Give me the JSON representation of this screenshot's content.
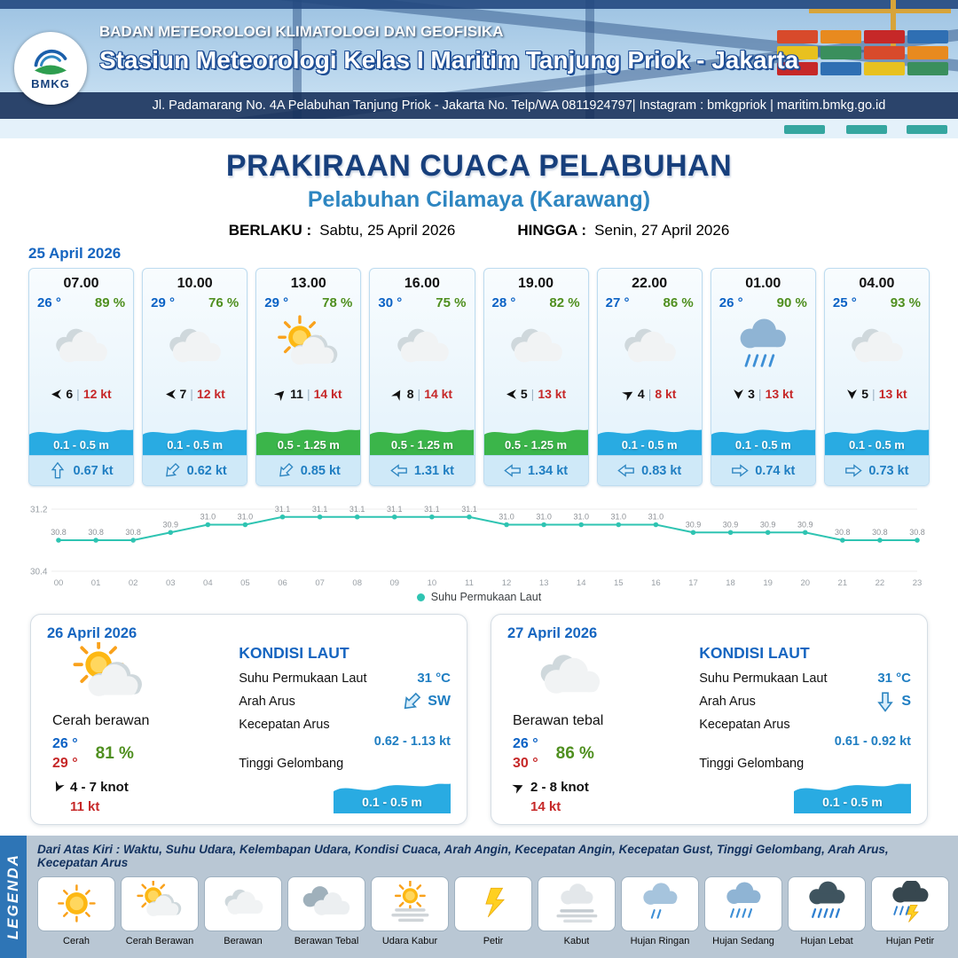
{
  "header": {
    "logo": "BMKG",
    "org": "BADAN METEOROLOGI KLIMATOLOGI DAN GEOFISIKA",
    "station": "Stasiun Meteorologi Kelas I Maritim Tanjung Priok - Jakarta",
    "address": "Jl. Padamarang No. 4A Pelabuhan Tanjung Priok - Jakarta No. Telp/WA 0811924797| Instagram : bmkgpriok | maritim.bmkg.go.id"
  },
  "title": {
    "main": "PRAKIRAAN CUACA PELABUHAN",
    "sub": "Pelabuhan Cilamaya (Karawang)",
    "berlaku_label": "BERLAKU :",
    "berlaku_value": "Sabtu, 25 April 2026",
    "hingga_label": "HINGGA :",
    "hingga_value": "Senin, 27 April 2026"
  },
  "forecast": {
    "date": "25 April 2026",
    "sep": "|",
    "cards": [
      {
        "time": "07.00",
        "temp": "26 °",
        "rh": "89 %",
        "icon": "berawan",
        "wind_rot": 180,
        "wind": "6",
        "gust": "12 kt",
        "wave": "0.1 - 0.5 m",
        "wave_color": "#29abe2",
        "cur_rot": -90,
        "cur": "0.67 kt"
      },
      {
        "time": "10.00",
        "temp": "29 °",
        "rh": "76 %",
        "icon": "berawan",
        "wind_rot": 180,
        "wind": "7",
        "gust": "12 kt",
        "wave": "0.1 - 0.5 m",
        "wave_color": "#29abe2",
        "cur_rot": 135,
        "cur": "0.62 kt"
      },
      {
        "time": "13.00",
        "temp": "29 °",
        "rh": "78 %",
        "icon": "cerah-berawan",
        "wind_rot": -45,
        "wind": "11",
        "gust": "14 kt",
        "wave": "0.5 - 1.25 m",
        "wave_color": "#3bb54a",
        "cur_rot": 135,
        "cur": "0.85 kt"
      },
      {
        "time": "16.00",
        "temp": "30 °",
        "rh": "75 %",
        "icon": "berawan",
        "wind_rot": -60,
        "wind": "8",
        "gust": "14 kt",
        "wave": "0.5 - 1.25 m",
        "wave_color": "#3bb54a",
        "cur_rot": 180,
        "cur": "1.31 kt"
      },
      {
        "time": "19.00",
        "temp": "28 °",
        "rh": "82 %",
        "icon": "berawan",
        "wind_rot": 180,
        "wind": "5",
        "gust": "13 kt",
        "wave": "0.5 - 1.25 m",
        "wave_color": "#3bb54a",
        "cur_rot": 180,
        "cur": "1.34 kt"
      },
      {
        "time": "22.00",
        "temp": "27 °",
        "rh": "86 %",
        "icon": "berawan",
        "wind_rot": -30,
        "wind": "4",
        "gust": "8 kt",
        "wave": "0.1 - 0.5 m",
        "wave_color": "#29abe2",
        "cur_rot": 180,
        "cur": "0.83 kt"
      },
      {
        "time": "01.00",
        "temp": "26 °",
        "rh": "90 %",
        "icon": "hujan-sedang",
        "wind_rot": 90,
        "wind": "3",
        "gust": "13 kt",
        "wave": "0.1 - 0.5 m",
        "wave_color": "#29abe2",
        "cur_rot": 0,
        "cur": "0.74 kt"
      },
      {
        "time": "04.00",
        "temp": "25 °",
        "rh": "93 %",
        "icon": "berawan",
        "wind_rot": 90,
        "wind": "5",
        "gust": "13 kt",
        "wave": "0.1 - 0.5 m",
        "wave_color": "#29abe2",
        "cur_rot": 0,
        "cur": "0.73 kt"
      }
    ]
  },
  "chart_data": {
    "type": "line",
    "x": [
      "00",
      "01",
      "02",
      "03",
      "04",
      "05",
      "06",
      "07",
      "08",
      "09",
      "10",
      "11",
      "12",
      "13",
      "14",
      "15",
      "16",
      "17",
      "18",
      "19",
      "20",
      "21",
      "22",
      "23"
    ],
    "series": [
      {
        "name": "Suhu Permukaan Laut",
        "values": [
          30.8,
          30.8,
          30.8,
          30.9,
          31.0,
          31.0,
          31.1,
          31.1,
          31.1,
          31.1,
          31.1,
          31.1,
          31.0,
          31.0,
          31.0,
          31.0,
          31.0,
          30.9,
          30.9,
          30.9,
          30.9,
          30.8,
          30.8,
          30.8
        ]
      }
    ],
    "ylim": [
      30.4,
      31.2
    ],
    "line_color": "#2fc4b2",
    "legend_position": "bottom",
    "grid": true
  },
  "days": [
    {
      "date": "26 April 2026",
      "icon": "cerah-berawan",
      "cond": "Cerah berawan",
      "tmin": "26 °",
      "tmax": "29 °",
      "rh": "81 %",
      "wind_rot": 115,
      "wind": "4  - 7 knot",
      "gust": "11 kt",
      "sea": {
        "title": "KONDISI LAUT",
        "sst_label": "Suhu Permukaan Laut",
        "sst": "31 °C",
        "arus_label": "Arah Arus",
        "arus_rot": 135,
        "arus_dir": "SW",
        "kec_label": "Kecepatan Arus",
        "kec": "0.62  - 1.13 kt",
        "wave_label": "Tinggi Gelombang",
        "wave": "0.1 - 0.5 m"
      }
    },
    {
      "date": "27 April 2026",
      "icon": "berawan",
      "cond": "Berawan tebal",
      "tmin": "26 °",
      "tmax": "30 °",
      "rh": "86 %",
      "wind_rot": -25,
      "wind": "2  - 8 knot",
      "gust": "14 kt",
      "sea": {
        "title": "KONDISI LAUT",
        "sst_label": "Suhu Permukaan Laut",
        "sst": "31 °C",
        "arus_label": "Arah Arus",
        "arus_rot": 90,
        "arus_dir": "S",
        "kec_label": "Kecepatan Arus",
        "kec": "0.61 - 0.92 kt",
        "wave_label": "Tinggi Gelombang",
        "wave": "0.1 - 0.5 m"
      }
    }
  ],
  "legend": {
    "title": "LEGENDA",
    "description": "Dari Atas Kiri : Waktu, Suhu Udara, Kelembapan Udara, Kondisi Cuaca, Arah Angin, Kecepatan Angin, Kecepatan Gust, Tinggi Gelombang, Arah Arus, Kecepatan Arus",
    "items": [
      {
        "label": "Cerah",
        "icon": "cerah"
      },
      {
        "label": "Cerah Berawan",
        "icon": "cerah-berawan"
      },
      {
        "label": "Berawan",
        "icon": "berawan"
      },
      {
        "label": "Berawan Tebal",
        "icon": "berawan-tebal"
      },
      {
        "label": "Udara Kabur",
        "icon": "udara-kabur"
      },
      {
        "label": "Petir",
        "icon": "petir"
      },
      {
        "label": "Kabut",
        "icon": "kabut"
      },
      {
        "label": "Hujan Ringan",
        "icon": "hujan-ringan"
      },
      {
        "label": "Hujan Sedang",
        "icon": "hujan-sedang"
      },
      {
        "label": "Hujan Lebat",
        "icon": "hujan-lebat"
      },
      {
        "label": "Hujan Petir",
        "icon": "hujan-petir"
      }
    ]
  }
}
